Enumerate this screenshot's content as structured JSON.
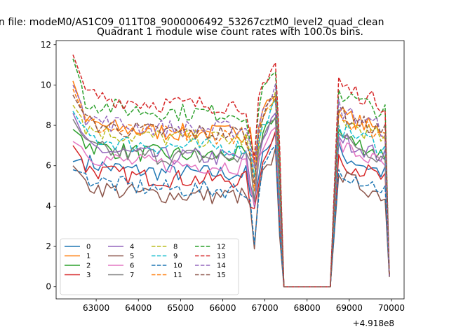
{
  "figure": {
    "supertitle": "n file: modeM0/AS1C09_011T08_9000006492_53267cztM0_level2_quad_clean",
    "offset_label": "+4.918e8"
  },
  "chart_data": {
    "type": "line",
    "title": "Quadrant 1 module wise count rates with 100.0s bins.",
    "xlabel": "",
    "ylabel": "",
    "x_offset": 491800000,
    "xlim": [
      62050,
      70300
    ],
    "ylim": [
      -0.6,
      12.2
    ],
    "xticks": [
      63000,
      64000,
      65000,
      66000,
      67000,
      68000,
      69000,
      70000
    ],
    "yticks": [
      0,
      2,
      4,
      6,
      8,
      10,
      12
    ],
    "grid": false,
    "legend": {
      "location": "lower-left",
      "ncol": 4
    },
    "series": [
      {
        "name": "0",
        "color": "#1f77b4",
        "dash": "solid",
        "base": 5.6,
        "start": 6.2
      },
      {
        "name": "1",
        "color": "#ff7f0e",
        "dash": "solid",
        "base": 7.6,
        "start": 10.2
      },
      {
        "name": "2",
        "color": "#2ca02c",
        "dash": "solid",
        "base": 6.5,
        "start": 7.8
      },
      {
        "name": "3",
        "color": "#d62728",
        "dash": "solid",
        "base": 5.3,
        "start": 7.0
      },
      {
        "name": "4",
        "color": "#9467bd",
        "dash": "solid",
        "base": 6.4,
        "start": 8.6
      },
      {
        "name": "5",
        "color": "#8c564b",
        "dash": "solid",
        "base": 4.5,
        "start": 6.0
      },
      {
        "name": "6",
        "color": "#e377c2",
        "dash": "solid",
        "base": 6.0,
        "start": 7.2
      },
      {
        "name": "7",
        "color": "#7f7f7f",
        "dash": "solid",
        "base": 6.4,
        "start": 8.3
      },
      {
        "name": "8",
        "color": "#bcbd22",
        "dash": "dashed",
        "base": 7.3,
        "start": 9.0
      },
      {
        "name": "9",
        "color": "#17becf",
        "dash": "dashed",
        "base": 6.9,
        "start": 8.7
      },
      {
        "name": "10",
        "color": "#1f77b4",
        "dash": "dashed",
        "base": 4.8,
        "start": 5.8
      },
      {
        "name": "11",
        "color": "#ff7f0e",
        "dash": "dashed",
        "base": 7.5,
        "start": 9.8
      },
      {
        "name": "12",
        "color": "#2ca02c",
        "dash": "dashed",
        "base": 8.6,
        "start": 11.3
      },
      {
        "name": "13",
        "color": "#d62728",
        "dash": "dashed",
        "base": 9.0,
        "start": 11.5
      },
      {
        "name": "14",
        "color": "#9467bd",
        "dash": "dashed",
        "base": 7.8,
        "start": 10.0
      },
      {
        "name": "15",
        "color": "#8c564b",
        "dash": "dashed",
        "base": 7.6,
        "start": 9.5
      }
    ]
  }
}
